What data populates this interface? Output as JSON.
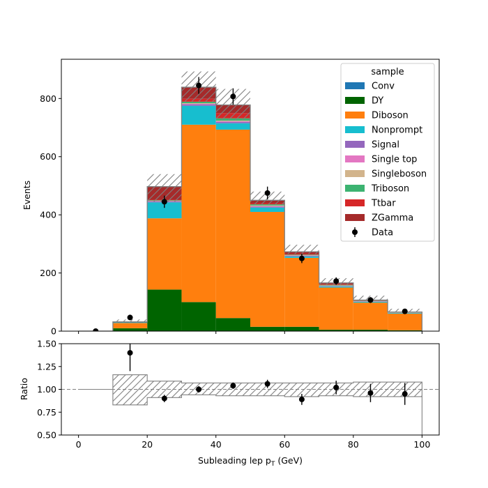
{
  "chart_data": {
    "type": "bar",
    "subtype": "stacked-histogram-with-ratio",
    "bin_edges": [
      0,
      10,
      20,
      30,
      40,
      50,
      60,
      70,
      80,
      90,
      100
    ],
    "xlabel": "Subleading lep p_T (GeV)",
    "xlabel_main": "Subleading lep p",
    "xlabel_sub": "T",
    "xlabel_unit": " (GeV)",
    "xlim": [
      -5,
      105
    ],
    "xticks": [
      "0",
      "20",
      "40",
      "60",
      "80",
      "100"
    ],
    "xtick_values": [
      0,
      20,
      40,
      60,
      80,
      100
    ],
    "main_panel": {
      "ylabel": "Events",
      "ylim": [
        0,
        935
      ],
      "yticks": [
        "0",
        "200",
        "400",
        "600",
        "800"
      ],
      "ytick_values": [
        0,
        200,
        400,
        600,
        800
      ],
      "legend_title": "sample",
      "legend_position": "top-right",
      "series": [
        {
          "name": "Conv",
          "color": "#1f77b4",
          "values": [
            0,
            0,
            0,
            0,
            0,
            0,
            0,
            0,
            0,
            0
          ]
        },
        {
          "name": "DY",
          "color": "#006400",
          "values": [
            0,
            10,
            143,
            100,
            45,
            15,
            15,
            5,
            5,
            3
          ]
        },
        {
          "name": "Diboson",
          "color": "#ff7f0e",
          "values": [
            0,
            18,
            245,
            610,
            648,
            395,
            237,
            145,
            93,
            57
          ]
        },
        {
          "name": "Nonprompt",
          "color": "#17becf",
          "values": [
            0,
            2,
            55,
            65,
            22,
            15,
            5,
            4,
            3,
            2
          ]
        },
        {
          "name": "Signal",
          "color": "#9467bd",
          "values": [
            0,
            0,
            3,
            5,
            5,
            3,
            2,
            1,
            1,
            0.5
          ]
        },
        {
          "name": "Single top",
          "color": "#e377c2",
          "values": [
            0,
            0,
            1,
            2,
            2,
            2,
            1,
            1,
            0.5,
            0.5
          ]
        },
        {
          "name": "Singleboson",
          "color": "#d2b48c",
          "values": [
            0,
            0,
            1,
            2,
            2,
            2,
            1,
            1,
            0.5,
            0.5
          ]
        },
        {
          "name": "Triboson",
          "color": "#3cb371",
          "values": [
            0,
            0,
            2,
            5,
            8,
            4,
            2,
            2,
            1,
            1
          ]
        },
        {
          "name": "Ttbar",
          "color": "#d62728",
          "values": [
            0,
            0,
            2,
            10,
            18,
            4,
            3,
            2,
            1,
            0.5
          ]
        },
        {
          "name": "ZGamma",
          "color": "#a52a2a",
          "values": [
            0,
            2,
            45,
            40,
            28,
            10,
            7,
            5,
            2,
            1
          ]
        }
      ],
      "uncertainty_band": {
        "lower": [
          0,
          30,
          445,
          790,
          725,
          435,
          265,
          160,
          103,
          64
        ],
        "upper": [
          0,
          40,
          540,
          893,
          833,
          480,
          297,
          182,
          122,
          77
        ]
      },
      "data": {
        "name": "Data",
        "values": [
          0,
          47,
          445,
          845,
          807,
          475,
          250,
          172,
          107,
          68
        ],
        "errors": [
          0,
          7,
          21,
          29,
          28,
          22,
          16,
          13,
          10,
          8
        ]
      }
    },
    "ratio_panel": {
      "ylabel": "Ratio",
      "ylim": [
        0.5,
        1.5
      ],
      "yticks": [
        "0.50",
        "0.75",
        "1.00",
        "1.25",
        "1.50"
      ],
      "ytick_values": [
        0.5,
        0.75,
        1.0,
        1.25,
        1.5
      ],
      "reference_line": 1.0,
      "band_lower": [
        1.0,
        0.83,
        0.91,
        0.94,
        0.93,
        0.93,
        0.92,
        0.93,
        0.92,
        0.92
      ],
      "band_upper": [
        1.0,
        1.16,
        1.09,
        1.07,
        1.07,
        1.07,
        1.07,
        1.07,
        1.08,
        1.08
      ],
      "ratio_values": [
        null,
        1.4,
        0.9,
        1.0,
        1.04,
        1.06,
        0.89,
        1.02,
        0.96,
        0.95
      ],
      "ratio_errors": [
        null,
        0.2,
        0.04,
        0.035,
        0.035,
        0.045,
        0.06,
        0.075,
        0.1,
        0.12
      ]
    },
    "colors": {
      "band_edge": "#808080",
      "hatch": "#808080",
      "data_marker": "#000000",
      "reference_line": "#808080"
    }
  }
}
